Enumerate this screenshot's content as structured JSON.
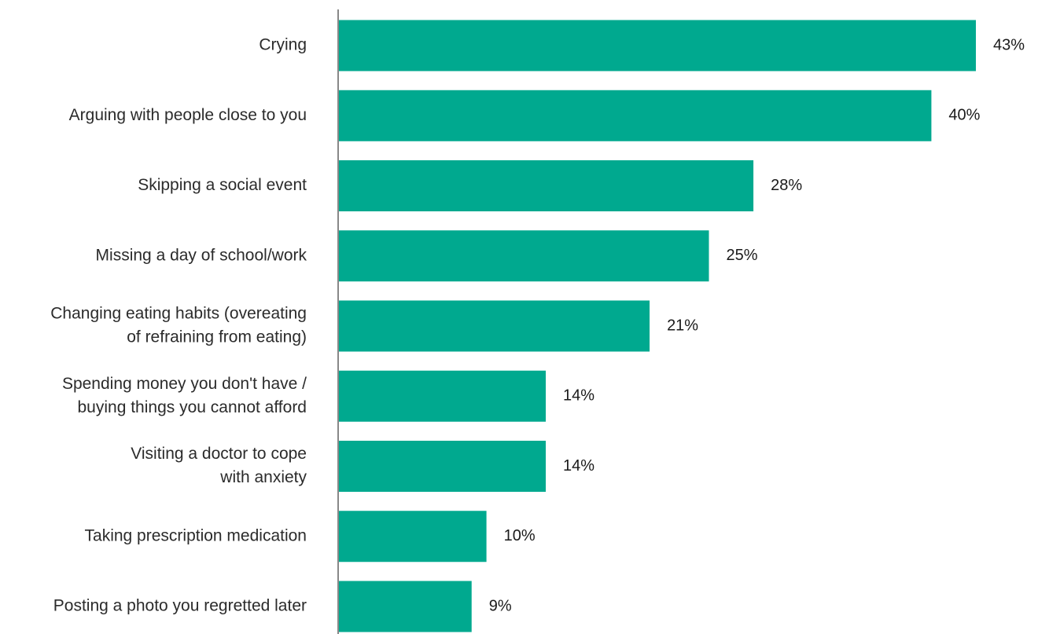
{
  "chart_data": {
    "type": "bar",
    "orientation": "horizontal",
    "title": "",
    "xlabel": "",
    "ylabel": "",
    "categories": [
      [
        "Crying"
      ],
      [
        "Arguing with people close to you"
      ],
      [
        "Skipping a social event"
      ],
      [
        "Missing a day of school/work"
      ],
      [
        "Changing eating habits (overeating",
        "of refraining from eating)"
      ],
      [
        "Spending money you don't have /",
        "buying things you cannot afford"
      ],
      [
        "Visiting a doctor to cope",
        "with anxiety"
      ],
      [
        "Taking prescription medication"
      ],
      [
        "Posting a photo you regretted later"
      ]
    ],
    "values": [
      43,
      40,
      28,
      25,
      21,
      14,
      14,
      10,
      9
    ],
    "value_labels": [
      "43%",
      "40%",
      "28%",
      "25%",
      "21%",
      "14%",
      "14%",
      "10%",
      "9%"
    ],
    "xlim": [
      0,
      43
    ],
    "grid": false,
    "colors": {
      "bar": "#00a98f",
      "axis": "#888888"
    }
  }
}
